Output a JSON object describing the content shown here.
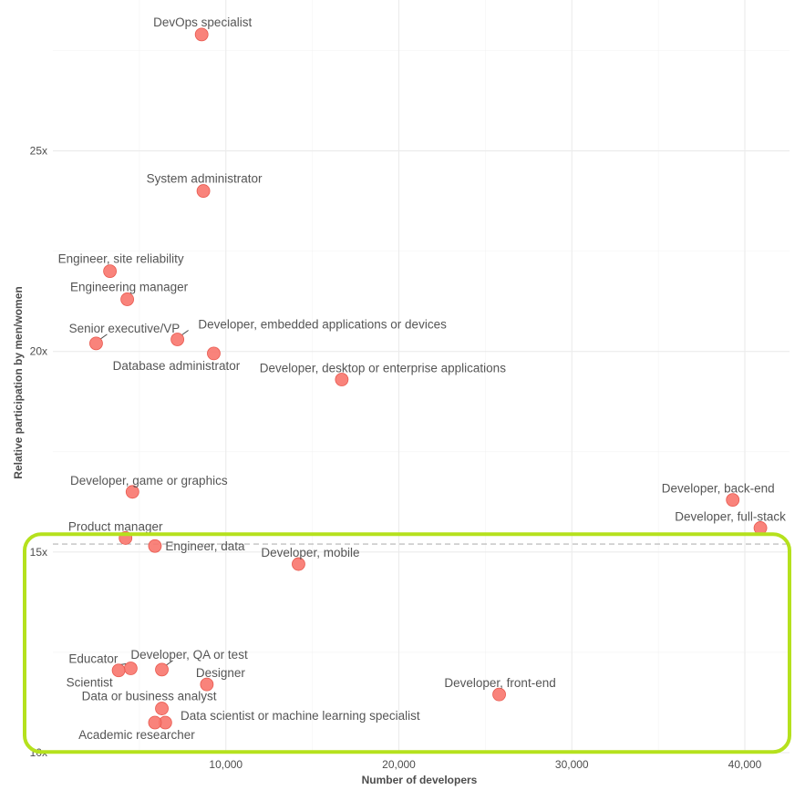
{
  "chart_data": {
    "type": "scatter",
    "xlabel": "Number of developers",
    "ylabel": "Relative participation by men/women",
    "xlim": [
      0,
      42700
    ],
    "ylim": [
      10,
      28.6
    ],
    "x_ticks": [
      {
        "value": 10000,
        "label": "10,000"
      },
      {
        "value": 20000,
        "label": "20,000"
      },
      {
        "value": 30000,
        "label": "30,000"
      },
      {
        "value": 40000,
        "label": "40,000"
      }
    ],
    "y_ticks": [
      {
        "value": 10,
        "label": "10x"
      },
      {
        "value": 15,
        "label": "15x"
      },
      {
        "value": 20,
        "label": "20x"
      },
      {
        "value": 25,
        "label": "25x"
      }
    ],
    "grid": true,
    "reference_line": {
      "y": 15.2,
      "style": "dashed"
    },
    "highlight": {
      "y_range": [
        10.2,
        15.4
      ],
      "color": "#b5e11d"
    },
    "point_color": "#f8766d",
    "points": [
      {
        "label": "DevOps specialist",
        "x": 8600,
        "y": 27.9
      },
      {
        "label": "System administrator",
        "x": 8700,
        "y": 24.0
      },
      {
        "label": "Engineer, site reliability",
        "x": 3300,
        "y": 22.0
      },
      {
        "label": "Engineering manager",
        "x": 4300,
        "y": 21.3
      },
      {
        "label": "Senior executive/VP",
        "x": 2500,
        "y": 20.2
      },
      {
        "label": "Developer, embedded applications or devices",
        "x": 7200,
        "y": 20.3
      },
      {
        "label": "Database administrator",
        "x": 9300,
        "y": 19.95
      },
      {
        "label": "Developer, desktop or enterprise applications",
        "x": 16700,
        "y": 19.3
      },
      {
        "label": "Developer, game or graphics",
        "x": 4600,
        "y": 16.5
      },
      {
        "label": "Developer, back-end",
        "x": 39300,
        "y": 16.3
      },
      {
        "label": "Developer, full-stack",
        "x": 40900,
        "y": 15.6
      },
      {
        "label": "Product manager",
        "x": 4200,
        "y": 15.35
      },
      {
        "label": "Engineer, data",
        "x": 5900,
        "y": 15.15
      },
      {
        "label": "Developer, mobile",
        "x": 14200,
        "y": 14.7
      },
      {
        "label": "Educator",
        "x": 4500,
        "y": 12.1
      },
      {
        "label": "Scientist",
        "x": 3800,
        "y": 12.05
      },
      {
        "label": "Developer, QA or test",
        "x": 6300,
        "y": 12.07
      },
      {
        "label": "Designer",
        "x": 8900,
        "y": 11.7
      },
      {
        "label": "Developer, front-end",
        "x": 25800,
        "y": 11.45
      },
      {
        "label": "Data or business analyst",
        "x": 6300,
        "y": 11.1
      },
      {
        "label": "Data scientist or machine learning specialist",
        "x": 6500,
        "y": 10.75
      },
      {
        "label": "Academic researcher",
        "x": 5900,
        "y": 10.75
      }
    ]
  }
}
